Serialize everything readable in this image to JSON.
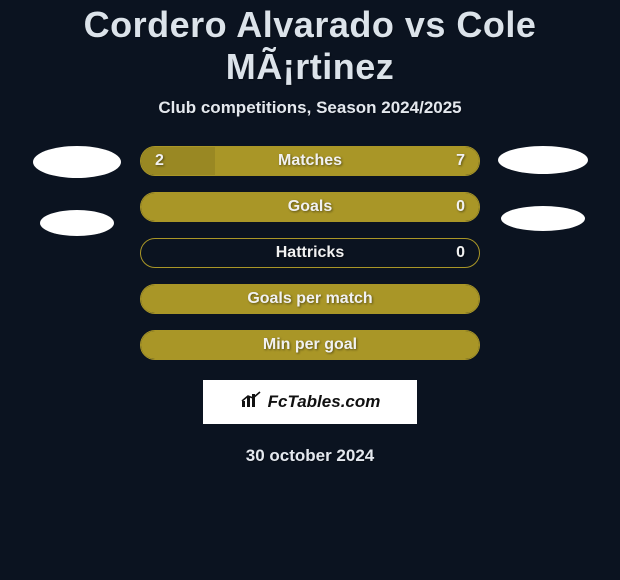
{
  "header": {
    "title": "Cordero Alvarado vs Cole MÃ¡rtinez",
    "subtitle": "Club competitions, Season 2024/2025"
  },
  "colors": {
    "olive_fill": "#a99627",
    "olive_dark": "#998823",
    "olive_border": "#a99627",
    "background": "#0b1320",
    "text": "#f1f1f1"
  },
  "bars": [
    {
      "key": "matches",
      "label": "Matches",
      "left_value": "2",
      "right_value": "7",
      "left_pct": 22,
      "fill_color": "#998823",
      "full_color": "#a99627"
    },
    {
      "key": "goals",
      "label": "Goals",
      "left_value": "",
      "right_value": "0",
      "left_pct": 0,
      "fill_color": "#998823",
      "full_color": "#a99627"
    },
    {
      "key": "hattricks",
      "label": "Hattricks",
      "left_value": "",
      "right_value": "0",
      "left_pct": 0,
      "fill_color": "#998823",
      "full_color": "transparent",
      "empty": true
    },
    {
      "key": "goals-per-match",
      "label": "Goals per match",
      "left_value": "",
      "right_value": "",
      "left_pct": 0,
      "fill_color": "#998823",
      "full_color": "#a99627"
    },
    {
      "key": "min-per-goal",
      "label": "Min per goal",
      "left_value": "",
      "right_value": "",
      "left_pct": 0,
      "fill_color": "#998823",
      "full_color": "#a99627"
    }
  ],
  "footer": {
    "brand": "FcTables.com",
    "date": "30 october 2024"
  }
}
